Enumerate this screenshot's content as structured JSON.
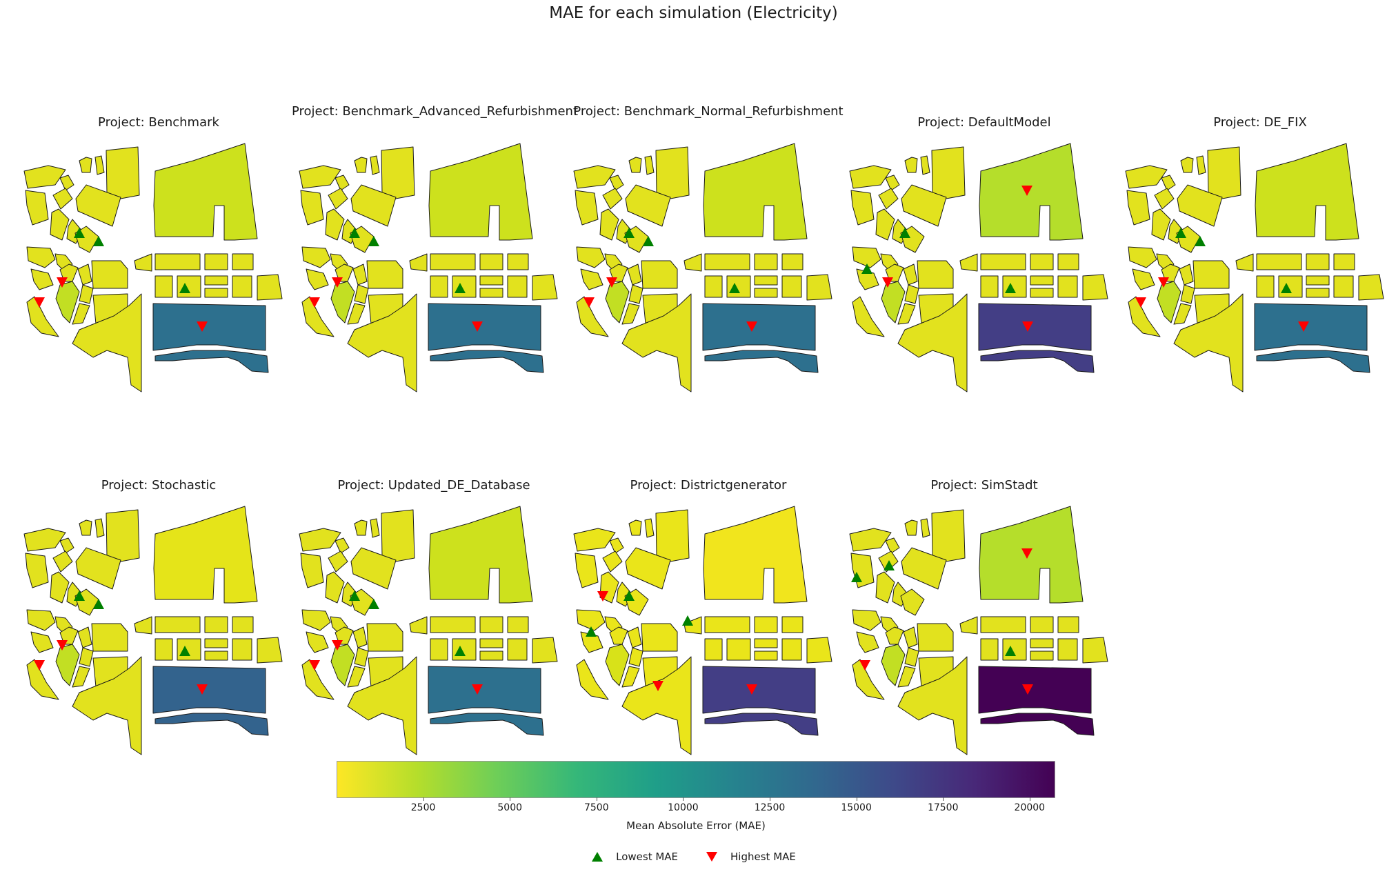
{
  "suptitle": "MAE for each simulation (Electricity)",
  "colorbar": {
    "label": "Mean Absolute Error (MAE)",
    "ticks": [
      "2500",
      "5000",
      "7500",
      "10000",
      "12500",
      "15000",
      "17500",
      "20000"
    ],
    "tick_values": [
      2500,
      5000,
      7500,
      10000,
      12500,
      15000,
      17500,
      20000
    ],
    "min": 0,
    "max": 20700,
    "colormap": "viridis_r"
  },
  "legend": {
    "lowest_label": "Lowest MAE",
    "highest_label": "Highest MAE",
    "lowest_color": "#008000",
    "highest_color": "#ff0000"
  },
  "panels": [
    {
      "title": "Project: Benchmark",
      "colors": {
        "default": "#e2e21e",
        "north_block": "#cde11d",
        "sw_strip": "#c2df23",
        "big_south": "#2d708e"
      },
      "low_markers": [
        "center-a",
        "center-b",
        "south-row"
      ],
      "high_markers": [
        "sw-strip",
        "sw-corner",
        "big-south"
      ]
    },
    {
      "title": "Project: Benchmark_Advanced_Refurbishment",
      "colors": {
        "default": "#e2e21e",
        "north_block": "#cde11d",
        "sw_strip": "#c2df23",
        "big_south": "#2d708e"
      },
      "low_markers": [
        "center-a",
        "center-b",
        "south-row"
      ],
      "high_markers": [
        "sw-strip",
        "sw-corner",
        "big-south"
      ]
    },
    {
      "title": "Project: Benchmark_Normal_Refurbishment",
      "colors": {
        "default": "#e2e21e",
        "north_block": "#cde11d",
        "sw_strip": "#c2df23",
        "big_south": "#2d708e"
      },
      "low_markers": [
        "center-a",
        "center-b",
        "south-row"
      ],
      "high_markers": [
        "sw-strip",
        "sw-corner",
        "big-south"
      ]
    },
    {
      "title": "Project: DefaultModel",
      "colors": {
        "default": "#e2e21e",
        "north_block": "#b5de2b",
        "sw_strip": "#c2df23",
        "big_south": "#433e85"
      },
      "low_markers": [
        "center-a",
        "west-mid",
        "south-row"
      ],
      "high_markers": [
        "north-block",
        "sw-strip",
        "big-south"
      ]
    },
    {
      "title": "Project: DE_FIX",
      "colors": {
        "default": "#e2e21e",
        "north_block": "#cde11d",
        "sw_strip": "#c2df23",
        "big_south": "#2d708e"
      },
      "low_markers": [
        "center-a",
        "center-b",
        "south-row"
      ],
      "high_markers": [
        "sw-strip",
        "sw-corner",
        "big-south"
      ]
    },
    {
      "title": "Project: Stochastic",
      "colors": {
        "default": "#e2e21e",
        "north_block": "#e5e419",
        "sw_strip": "#c2df23",
        "big_south": "#33638d"
      },
      "low_markers": [
        "center-a",
        "center-b",
        "south-row"
      ],
      "high_markers": [
        "sw-strip",
        "sw-corner",
        "big-south"
      ]
    },
    {
      "title": "Project: Updated_DE_Database",
      "colors": {
        "default": "#e2e21e",
        "north_block": "#cde11d",
        "sw_strip": "#c2df23",
        "big_south": "#2d708e"
      },
      "low_markers": [
        "center-a",
        "center-b",
        "south-row"
      ],
      "high_markers": [
        "sw-strip",
        "sw-corner",
        "big-south"
      ]
    },
    {
      "title": "Project: Districtgenerator",
      "colors": {
        "default": "#eae51a",
        "north_block": "#f1e51d",
        "sw_strip": "#d8e219",
        "big_south": "#433e85"
      },
      "low_markers": [
        "center-a",
        "west-mid",
        "mid-stub"
      ],
      "high_markers": [
        "west-upper",
        "sw-lower",
        "big-south"
      ]
    },
    {
      "title": "Project: SimStadt",
      "colors": {
        "default": "#e2e21e",
        "north_block": "#b5de2b",
        "sw_strip": "#c2df23",
        "big_south": "#440154"
      },
      "low_markers": [
        "west-top",
        "nw-small",
        "south-row"
      ],
      "high_markers": [
        "north-block",
        "sw-corner",
        "big-south"
      ]
    }
  ]
}
